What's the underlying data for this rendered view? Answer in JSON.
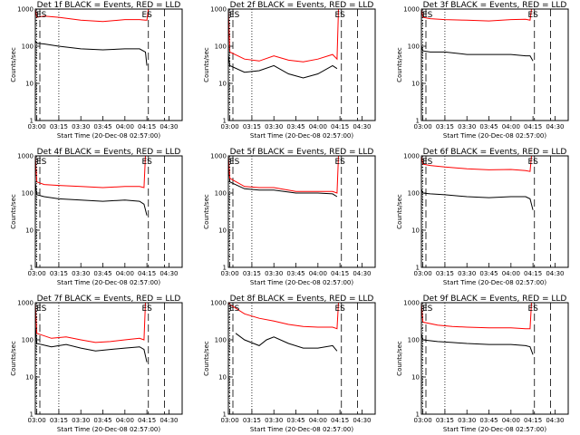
{
  "chart_data": [
    {
      "type": "line",
      "title": "Det 1f BLACK = Events, RED = LLD",
      "xlabel": "Start Time (20-Dec-08 02:57:00)",
      "ylabel": "Counts/sec",
      "x_ticks": [
        "03:00",
        "03:15",
        "03:30",
        "03:45",
        "04:00",
        "04:15",
        "04:30"
      ],
      "y_ticks": [
        "1",
        "10",
        "100",
        "1000"
      ],
      "yscale": "log",
      "ylim": [
        1,
        1000
      ],
      "flag_labels": [
        "ES",
        "ES"
      ],
      "series": [
        {
          "color": "#000000",
          "x": [
            "02:59",
            "03:00",
            "03:05",
            "03:15",
            "03:30",
            "03:45",
            "04:00",
            "04:10",
            "04:14",
            "04:15"
          ],
          "values": [
            140,
            120,
            115,
            100,
            85,
            80,
            85,
            85,
            70,
            30
          ]
        },
        {
          "color": "#ff0000",
          "x": [
            "02:59",
            "03:00",
            "03:05",
            "03:15",
            "03:30",
            "03:45",
            "04:00",
            "04:10",
            "04:14",
            "04:15",
            "04:16"
          ],
          "values": [
            1000,
            600,
            650,
            600,
            500,
            460,
            520,
            520,
            500,
            500,
            1000
          ]
        }
      ]
    },
    {
      "type": "line",
      "title": "Det 2f BLACK = Events, RED = LLD",
      "xlabel": "Start Time (20-Dec-08 02:57:00)",
      "ylabel": "Counts/sec",
      "x_ticks": [
        "03:00",
        "03:15",
        "03:30",
        "03:45",
        "04:00",
        "04:15",
        "04:30"
      ],
      "y_ticks": [
        "1",
        "10",
        "100",
        "1000"
      ],
      "yscale": "log",
      "ylim": [
        1,
        1000
      ],
      "flag_labels": [
        "ES",
        "ES"
      ],
      "series": [
        {
          "color": "#000000",
          "x": [
            "02:59",
            "03:00",
            "03:10",
            "03:20",
            "03:30",
            "03:40",
            "03:50",
            "04:00",
            "04:10",
            "04:13"
          ],
          "values": [
            60,
            30,
            20,
            22,
            30,
            18,
            14,
            18,
            30,
            25
          ]
        },
        {
          "color": "#ff0000",
          "x": [
            "02:59",
            "03:00",
            "03:10",
            "03:20",
            "03:30",
            "03:40",
            "03:50",
            "04:00",
            "04:10",
            "04:13",
            "04:14"
          ],
          "values": [
            1000,
            70,
            45,
            40,
            55,
            42,
            38,
            45,
            60,
            45,
            1000
          ]
        }
      ]
    },
    {
      "type": "line",
      "title": "Det 3f BLACK = Events, RED = LLD",
      "xlabel": "Start Time (20-Dec-08 02:57:00)",
      "ylabel": "Counts/sec",
      "x_ticks": [
        "03:00",
        "03:15",
        "03:30",
        "03:45",
        "04:00",
        "04:15",
        "04:30"
      ],
      "y_ticks": [
        "1",
        "10",
        "100",
        "1000"
      ],
      "yscale": "log",
      "ylim": [
        1,
        1000
      ],
      "flag_labels": [
        "ES",
        "ES"
      ],
      "series": [
        {
          "color": "#000000",
          "x": [
            "02:59",
            "03:00",
            "03:05",
            "03:15",
            "03:30",
            "03:45",
            "04:00",
            "04:10",
            "04:13",
            "04:15"
          ],
          "values": [
            100,
            75,
            70,
            70,
            60,
            60,
            60,
            55,
            55,
            40
          ]
        },
        {
          "color": "#ff0000",
          "x": [
            "02:59",
            "03:00",
            "03:05",
            "03:15",
            "03:30",
            "03:45",
            "04:00",
            "04:10",
            "04:13",
            "04:14"
          ],
          "values": [
            1000,
            600,
            550,
            520,
            500,
            480,
            520,
            530,
            500,
            1000
          ]
        }
      ]
    },
    {
      "type": "line",
      "title": "Det 4f BLACK = Events, RED = LLD",
      "xlabel": "Start Time (20-Dec-08 02:57:00)",
      "ylabel": "Counts/sec",
      "x_ticks": [
        "03:00",
        "03:15",
        "03:30",
        "03:45",
        "04:00",
        "04:15",
        "04:30"
      ],
      "y_ticks": [
        "1",
        "10",
        "100",
        "1000"
      ],
      "yscale": "log",
      "ylim": [
        1,
        1000
      ],
      "flag_labels": [
        "ES",
        "ES"
      ],
      "series": [
        {
          "color": "#000000",
          "x": [
            "02:59",
            "03:00",
            "03:05",
            "03:15",
            "03:30",
            "03:45",
            "04:00",
            "04:10",
            "04:13",
            "04:15"
          ],
          "values": [
            200,
            90,
            80,
            70,
            65,
            60,
            65,
            60,
            50,
            25
          ]
        },
        {
          "color": "#ff0000",
          "x": [
            "02:59",
            "03:00",
            "03:05",
            "03:15",
            "03:30",
            "03:45",
            "04:00",
            "04:10",
            "04:13",
            "04:14"
          ],
          "values": [
            1000,
            200,
            170,
            160,
            150,
            140,
            150,
            150,
            140,
            1000
          ]
        }
      ]
    },
    {
      "type": "line",
      "title": "Det 5f BLACK = Events, RED = LLD",
      "xlabel": "Start Time (20-Dec-08 02:57:00)",
      "ylabel": "Counts/sec",
      "x_ticks": [
        "03:00",
        "03:15",
        "03:30",
        "03:45",
        "04:00",
        "04:15",
        "04:30"
      ],
      "y_ticks": [
        "1",
        "10",
        "100",
        "1000"
      ],
      "yscale": "log",
      "ylim": [
        1,
        1000
      ],
      "flag_labels": [
        "ES",
        "ES"
      ],
      "series": [
        {
          "color": "#000000",
          "x": [
            "02:59",
            "03:00",
            "03:10",
            "03:20",
            "03:30",
            "03:45",
            "04:00",
            "04:10",
            "04:13"
          ],
          "values": [
            900,
            200,
            130,
            120,
            120,
            100,
            100,
            95,
            80
          ]
        },
        {
          "color": "#ff0000",
          "x": [
            "02:59",
            "03:00",
            "03:10",
            "03:20",
            "03:30",
            "03:45",
            "04:00",
            "04:10",
            "04:13",
            "04:14"
          ],
          "values": [
            1000,
            250,
            150,
            140,
            140,
            110,
            110,
            110,
            100,
            1000
          ]
        }
      ]
    },
    {
      "type": "line",
      "title": "Det 6f BLACK = Events, RED = LLD",
      "xlabel": "Start Time (20-Dec-08 02:57:00)",
      "ylabel": "Counts/sec",
      "x_ticks": [
        "03:00",
        "03:15",
        "03:30",
        "03:45",
        "04:00",
        "04:15",
        "04:30"
      ],
      "y_ticks": [
        "1",
        "10",
        "100",
        "1000"
      ],
      "yscale": "log",
      "ylim": [
        1,
        1000
      ],
      "flag_labels": [
        "ES",
        "ES"
      ],
      "series": [
        {
          "color": "#000000",
          "x": [
            "02:59",
            "03:00",
            "03:05",
            "03:15",
            "03:30",
            "03:45",
            "04:00",
            "04:10",
            "04:13",
            "04:15"
          ],
          "values": [
            130,
            100,
            95,
            90,
            80,
            75,
            80,
            80,
            70,
            35
          ]
        },
        {
          "color": "#ff0000",
          "x": [
            "02:59",
            "03:00",
            "03:05",
            "03:15",
            "03:30",
            "03:45",
            "04:00",
            "04:10",
            "04:13",
            "04:14"
          ],
          "values": [
            1000,
            600,
            550,
            500,
            450,
            420,
            430,
            400,
            380,
            1000
          ]
        }
      ]
    },
    {
      "type": "line",
      "title": "Det 7f BLACK = Events, RED = LLD",
      "xlabel": "Start Time (20-Dec-08 02:57:00)",
      "ylabel": "Counts/sec",
      "x_ticks": [
        "03:00",
        "03:15",
        "03:30",
        "03:45",
        "04:00",
        "04:15",
        "04:30"
      ],
      "y_ticks": [
        "1",
        "10",
        "100",
        "1000"
      ],
      "yscale": "log",
      "ylim": [
        1,
        1000
      ],
      "flag_labels": [
        "ES",
        "ES"
      ],
      "series": [
        {
          "color": "#000000",
          "x": [
            "02:59",
            "03:00",
            "03:10",
            "03:20",
            "03:30",
            "03:40",
            "03:50",
            "04:00",
            "04:10",
            "04:13",
            "04:15"
          ],
          "values": [
            250,
            80,
            65,
            75,
            60,
            50,
            55,
            60,
            65,
            55,
            25
          ]
        },
        {
          "color": "#ff0000",
          "x": [
            "02:59",
            "03:00",
            "03:10",
            "03:20",
            "03:30",
            "03:40",
            "03:50",
            "04:00",
            "04:10",
            "04:13",
            "04:14"
          ],
          "values": [
            1000,
            150,
            110,
            120,
            100,
            85,
            90,
            100,
            110,
            100,
            1000
          ]
        }
      ]
    },
    {
      "type": "line",
      "title": "Det 8f BLACK = Events, RED = LLD",
      "xlabel": "Start Time (20-Dec-08 02:57:00)",
      "ylabel": "Counts/sec",
      "x_ticks": [
        "03:00",
        "03:15",
        "03:30",
        "03:45",
        "04:00",
        "04:15",
        "04:30"
      ],
      "y_ticks": [
        "1",
        "10",
        "100",
        "1000"
      ],
      "yscale": "log",
      "ylim": [
        1,
        1000
      ],
      "flag_labels": [
        "ES",
        "ES"
      ],
      "series": [
        {
          "color": "#000000",
          "x": [
            "03:04",
            "03:10",
            "03:20",
            "03:25",
            "03:30",
            "03:40",
            "03:50",
            "04:00",
            "04:10",
            "04:13"
          ],
          "values": [
            150,
            100,
            70,
            100,
            120,
            80,
            60,
            60,
            70,
            50
          ]
        },
        {
          "color": "#ff0000",
          "x": [
            "02:59",
            "03:00",
            "03:10",
            "03:20",
            "03:30",
            "03:40",
            "03:50",
            "04:00",
            "04:10",
            "04:13",
            "04:14"
          ],
          "values": [
            1000,
            900,
            500,
            380,
            320,
            260,
            230,
            220,
            220,
            200,
            1000
          ]
        }
      ]
    },
    {
      "type": "line",
      "title": "Det 9f BLACK = Events, RED = LLD",
      "xlabel": "Start Time (20-Dec-08 02:57:00)",
      "ylabel": "Counts/sec",
      "x_ticks": [
        "03:00",
        "03:15",
        "03:30",
        "03:45",
        "04:00",
        "04:15",
        "04:30"
      ],
      "y_ticks": [
        "1",
        "10",
        "100",
        "1000"
      ],
      "yscale": "log",
      "ylim": [
        1,
        1000
      ],
      "flag_labels": [
        "ES",
        "ES"
      ],
      "series": [
        {
          "color": "#000000",
          "x": [
            "02:59",
            "03:00",
            "03:10",
            "03:20",
            "03:30",
            "03:45",
            "04:00",
            "04:10",
            "04:13",
            "04:15"
          ],
          "values": [
            150,
            100,
            90,
            85,
            80,
            75,
            75,
            70,
            65,
            40
          ]
        },
        {
          "color": "#ff0000",
          "x": [
            "02:59",
            "03:00",
            "03:10",
            "03:20",
            "03:30",
            "03:45",
            "04:00",
            "04:10",
            "04:13",
            "04:14"
          ],
          "values": [
            1000,
            300,
            250,
            230,
            220,
            210,
            210,
            200,
            200,
            1000
          ]
        }
      ]
    }
  ]
}
